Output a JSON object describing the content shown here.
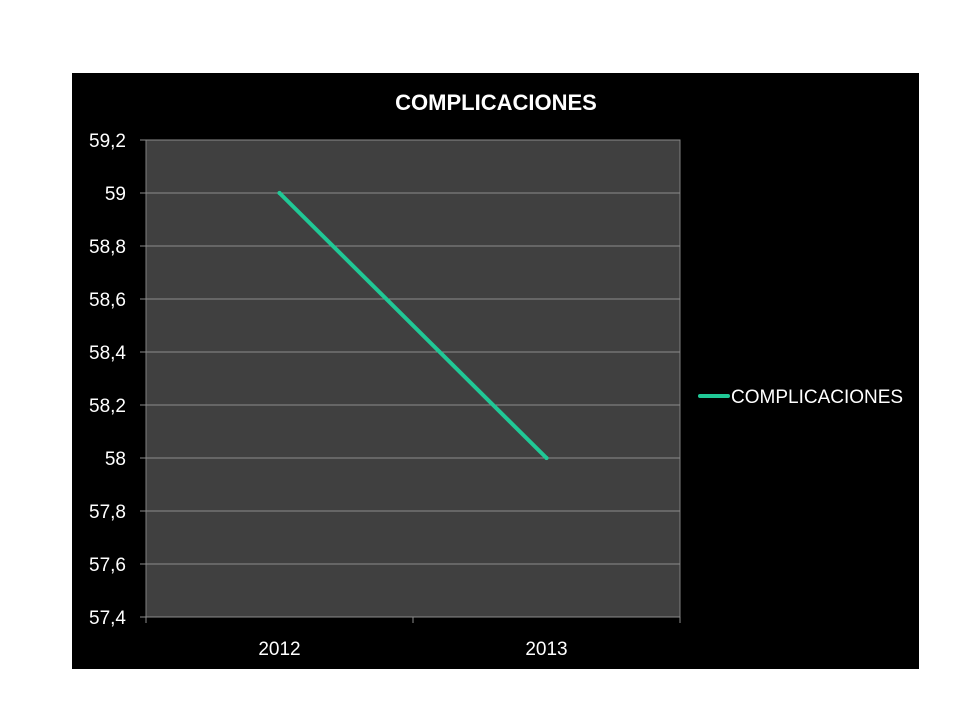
{
  "chart_data": {
    "type": "line",
    "title": "COMPLICACIONES",
    "categories": [
      "2012",
      "2013"
    ],
    "series": [
      {
        "name": "COMPLICACIONES",
        "values": [
          59,
          58
        ],
        "color": "#20c896"
      }
    ],
    "ylim": [
      57.4,
      59.2
    ],
    "yticks": [
      "57,4",
      "57,6",
      "57,8",
      "58",
      "58,2",
      "58,4",
      "58,6",
      "58,8",
      "59",
      "59,2"
    ],
    "xlabel": "",
    "ylabel": "",
    "grid": true,
    "legend_position": "right",
    "background": "#000000",
    "plot_background": "#404040",
    "text_color": "#ffffff"
  }
}
